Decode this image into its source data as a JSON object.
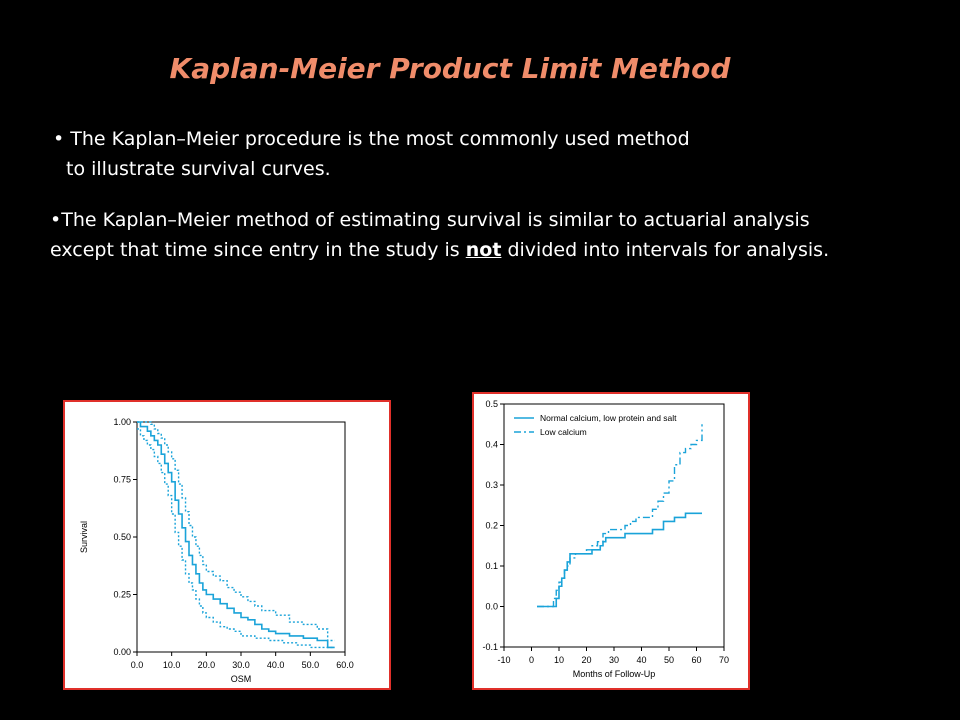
{
  "slide": {
    "title": "Kaplan-Meier Product Limit Method",
    "bullet1_line1": "The Kaplan–Meier procedure is the most commonly used method",
    "bullet1_line2": "to illustrate survival curves.",
    "bullet2_part1": "The Kaplan–Meier method of estimating survival is similar to actuarial analysis",
    "bullet2_part2": "except that time since entry in the study is ",
    "bullet2_emph": "not",
    "bullet2_part3": " divided into intervals for analysis.",
    "bullet_glyph": "•"
  },
  "chart_data": [
    {
      "type": "line",
      "title": "",
      "xlabel": "OSM",
      "ylabel": "Survival",
      "xlim": [
        0,
        60
      ],
      "ylim": [
        0,
        1
      ],
      "xticks": [
        "0.0",
        "10.0",
        "20.0",
        "30.0",
        "40.0",
        "50.0",
        "60.0"
      ],
      "xtick_values": [
        0,
        10,
        20,
        30,
        40,
        50,
        60
      ],
      "yticks": [
        "0.00",
        "0.25",
        "0.50",
        "0.75",
        "1.00"
      ],
      "ytick_values": [
        0,
        0.25,
        0.5,
        0.75,
        1.0
      ],
      "color": "#1AA3D9",
      "series": [
        {
          "style": "solid",
          "step": true,
          "x": [
            0,
            1,
            3,
            4,
            5,
            6,
            7,
            8,
            9,
            10,
            11,
            12,
            13,
            14,
            15,
            16,
            17,
            18,
            19,
            20,
            22,
            24,
            26,
            28,
            30,
            32,
            34,
            36,
            38,
            40,
            44,
            48,
            52,
            55,
            57
          ],
          "y": [
            1.0,
            0.98,
            0.96,
            0.94,
            0.92,
            0.9,
            0.86,
            0.82,
            0.78,
            0.74,
            0.66,
            0.6,
            0.54,
            0.48,
            0.42,
            0.38,
            0.34,
            0.3,
            0.27,
            0.25,
            0.23,
            0.21,
            0.19,
            0.17,
            0.15,
            0.14,
            0.12,
            0.1,
            0.09,
            0.08,
            0.07,
            0.06,
            0.05,
            0.02,
            0.02
          ]
        },
        {
          "style": "dotted",
          "step": true,
          "x": [
            0,
            2,
            4,
            5,
            6,
            7,
            8,
            9,
            10,
            11,
            12,
            13,
            14,
            15,
            16,
            17,
            18,
            19,
            20,
            22,
            24,
            26,
            28,
            30,
            32,
            34,
            36,
            40,
            44,
            48,
            52,
            55,
            57
          ],
          "y": [
            1.0,
            1.0,
            0.99,
            0.97,
            0.95,
            0.93,
            0.9,
            0.87,
            0.84,
            0.79,
            0.73,
            0.67,
            0.61,
            0.55,
            0.5,
            0.46,
            0.42,
            0.38,
            0.35,
            0.33,
            0.31,
            0.28,
            0.26,
            0.24,
            0.22,
            0.2,
            0.18,
            0.16,
            0.13,
            0.12,
            0.1,
            0.05,
            0.05
          ]
        },
        {
          "style": "dotted",
          "step": true,
          "x": [
            0,
            1,
            2,
            3,
            4,
            5,
            6,
            7,
            8,
            9,
            10,
            11,
            12,
            13,
            14,
            15,
            16,
            17,
            18,
            19,
            20,
            22,
            24,
            26,
            28,
            30,
            34,
            38,
            42,
            46,
            50,
            57
          ],
          "y": [
            0.97,
            0.94,
            0.92,
            0.9,
            0.88,
            0.85,
            0.82,
            0.78,
            0.73,
            0.68,
            0.6,
            0.52,
            0.46,
            0.4,
            0.34,
            0.3,
            0.27,
            0.23,
            0.2,
            0.17,
            0.15,
            0.13,
            0.11,
            0.1,
            0.09,
            0.07,
            0.06,
            0.05,
            0.04,
            0.03,
            0.02,
            0.02
          ]
        }
      ]
    },
    {
      "type": "line",
      "title": "",
      "xlabel": "Months of Follow-Up",
      "ylabel": "",
      "xlim": [
        -10,
        70
      ],
      "ylim": [
        -0.1,
        0.5
      ],
      "xticks": [
        "-10",
        "0",
        "10",
        "20",
        "30",
        "40",
        "50",
        "60",
        "70"
      ],
      "xtick_values": [
        -10,
        0,
        10,
        20,
        30,
        40,
        50,
        60,
        70
      ],
      "yticks": [
        "-0.1",
        "0.0",
        "0.1",
        "0.2",
        "0.3",
        "0.4",
        "0.5"
      ],
      "ytick_values": [
        -0.1,
        0,
        0.1,
        0.2,
        0.3,
        0.4,
        0.5
      ],
      "color": "#1AA3D9",
      "legend": "top-left",
      "series": [
        {
          "name": "Normal calcium, low protein and salt",
          "style": "solid",
          "step": true,
          "x": [
            2,
            9,
            10,
            11,
            12,
            13,
            14,
            16,
            17,
            18,
            19,
            20,
            22,
            25,
            26,
            27,
            28,
            34,
            36,
            44,
            48,
            52,
            56,
            62
          ],
          "y": [
            0.0,
            0.02,
            0.05,
            0.07,
            0.09,
            0.11,
            0.13,
            0.13,
            0.13,
            0.13,
            0.13,
            0.13,
            0.14,
            0.15,
            0.16,
            0.17,
            0.17,
            0.18,
            0.18,
            0.19,
            0.21,
            0.22,
            0.23,
            0.23
          ]
        },
        {
          "name": "Low calcium",
          "style": "dashdot",
          "step": true,
          "x": [
            2,
            6,
            8,
            9,
            10,
            11,
            12,
            13,
            14,
            16,
            18,
            20,
            22,
            24,
            26,
            28,
            30,
            34,
            36,
            38,
            40,
            44,
            46,
            48,
            50,
            52,
            54,
            56,
            58,
            60,
            62
          ],
          "y": [
            0.0,
            0.0,
            0.02,
            0.04,
            0.06,
            0.07,
            0.09,
            0.1,
            0.12,
            0.13,
            0.13,
            0.14,
            0.15,
            0.16,
            0.18,
            0.19,
            0.19,
            0.2,
            0.21,
            0.22,
            0.22,
            0.24,
            0.26,
            0.28,
            0.31,
            0.35,
            0.38,
            0.39,
            0.4,
            0.41,
            0.45
          ]
        }
      ]
    }
  ]
}
